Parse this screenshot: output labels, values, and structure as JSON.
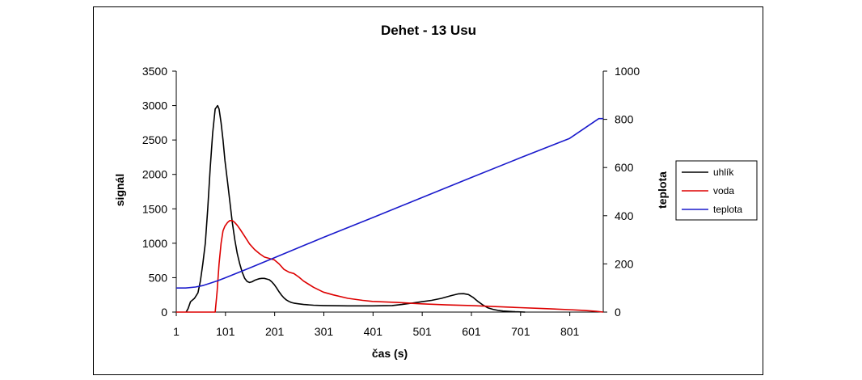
{
  "chart_data": {
    "type": "line",
    "title": "Dehet - 13 Usu",
    "xlabel": "čas (s)",
    "ylabel": "signál",
    "y2label": "teplota",
    "xlim": [
      1,
      869
    ],
    "ylim": [
      0,
      3500
    ],
    "y2lim": [
      0,
      1000
    ],
    "x_ticks": [
      "1",
      "101",
      "201",
      "301",
      "401",
      "501",
      "601",
      "701",
      "801"
    ],
    "y_ticks": [
      "0",
      "500",
      "1000",
      "1500",
      "2000",
      "2500",
      "3000",
      "3500"
    ],
    "y2_ticks": [
      "0",
      "200",
      "400",
      "600",
      "800",
      "1000"
    ],
    "grid": false,
    "legend_position": "right",
    "series": [
      {
        "name": "uhlík",
        "axis": "left",
        "color": "#000000",
        "x": [
          21,
          25,
          30,
          38,
          45,
          50,
          55,
          60,
          65,
          70,
          75,
          80,
          85,
          88,
          92,
          96,
          100,
          105,
          110,
          115,
          120,
          125,
          130,
          135,
          140,
          145,
          150,
          155,
          160,
          165,
          170,
          175,
          180,
          185,
          190,
          195,
          200,
          205,
          210,
          215,
          220,
          225,
          230,
          235,
          240,
          250,
          260,
          280,
          300,
          350,
          400,
          440,
          460,
          480,
          500,
          520,
          540,
          560,
          575,
          585,
          595,
          605,
          615,
          625,
          635,
          645,
          655,
          665,
          675,
          690,
          710
        ],
        "y": [
          0,
          50,
          150,
          200,
          280,
          450,
          700,
          1000,
          1500,
          2100,
          2600,
          2950,
          3000,
          2950,
          2750,
          2500,
          2200,
          1900,
          1600,
          1300,
          1050,
          850,
          700,
          580,
          490,
          445,
          430,
          440,
          460,
          475,
          485,
          490,
          490,
          480,
          470,
          440,
          400,
          350,
          295,
          245,
          205,
          175,
          155,
          140,
          130,
          120,
          110,
          100,
          95,
          90,
          90,
          95,
          110,
          130,
          150,
          170,
          200,
          240,
          265,
          268,
          255,
          210,
          150,
          100,
          60,
          40,
          25,
          15,
          10,
          5,
          0
        ]
      },
      {
        "name": "voda",
        "axis": "left",
        "color": "#dd0000",
        "x": [
          1,
          80,
          84,
          88,
          92,
          96,
          100,
          105,
          110,
          115,
          120,
          125,
          130,
          140,
          150,
          160,
          170,
          180,
          190,
          200,
          210,
          220,
          230,
          240,
          250,
          260,
          280,
          300,
          320,
          350,
          380,
          400,
          450,
          500,
          550,
          600,
          650,
          700,
          750,
          800,
          830,
          855,
          869
        ],
        "y": [
          0,
          0,
          300,
          700,
          1000,
          1180,
          1250,
          1300,
          1330,
          1330,
          1300,
          1260,
          1210,
          1100,
          990,
          910,
          850,
          800,
          780,
          760,
          700,
          620,
          580,
          560,
          510,
          450,
          360,
          290,
          250,
          200,
          170,
          155,
          140,
          120,
          105,
          95,
          80,
          65,
          50,
          35,
          25,
          10,
          0
        ]
      },
      {
        "name": "teplota",
        "axis": "right",
        "color": "#1a1acc",
        "x": [
          1,
          20,
          40,
          55,
          70,
          85,
          100,
          150,
          200,
          300,
          400,
          500,
          600,
          700,
          800,
          860,
          869
        ],
        "y": [
          100,
          100,
          104,
          110,
          120,
          130,
          142,
          183,
          225,
          310,
          392,
          475,
          558,
          640,
          720,
          803,
          803
        ]
      }
    ]
  }
}
